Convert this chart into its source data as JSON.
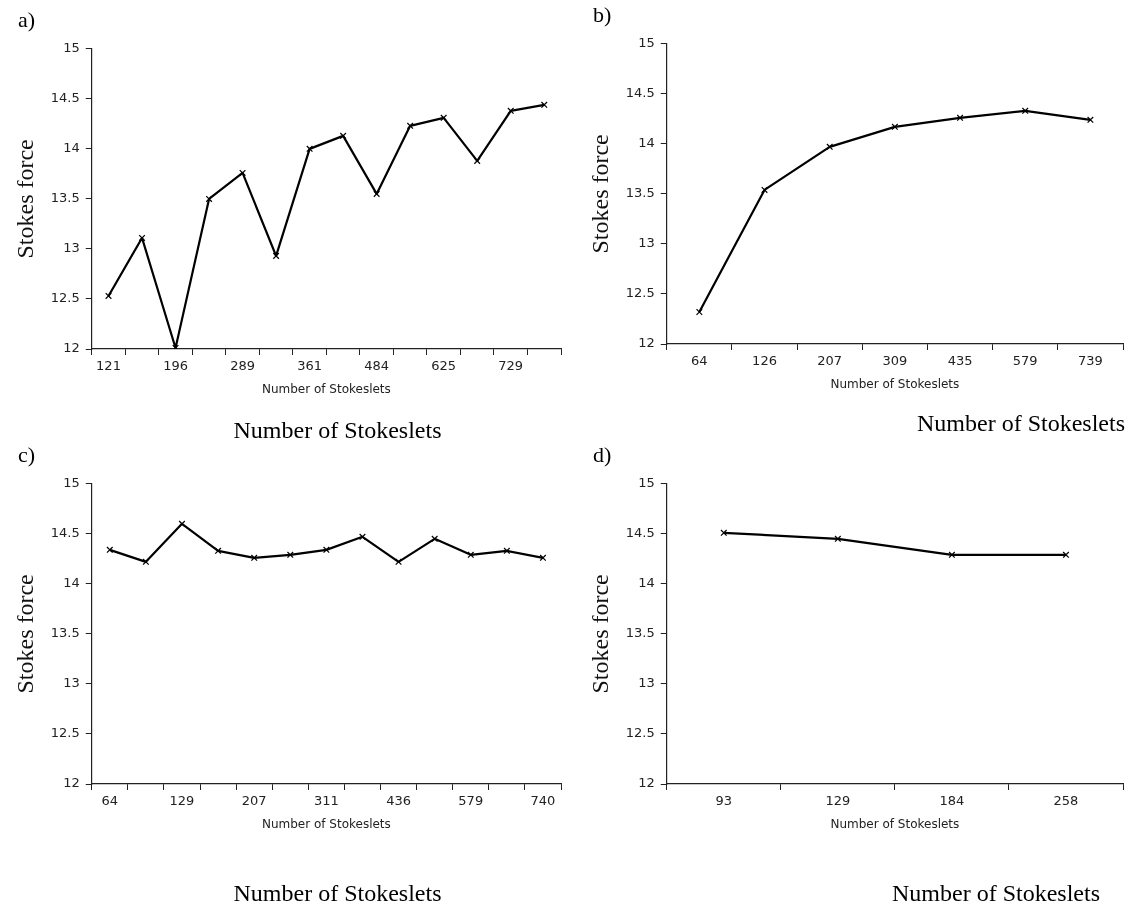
{
  "chart_data": [
    {
      "type": "line",
      "title": "a)",
      "xlabel": "Number of Stokeslets",
      "ylabel": "Stokes force",
      "annotations": [
        "Number of Stokeslets"
      ],
      "categories": [
        "121",
        null,
        "196",
        null,
        "289",
        null,
        "361",
        null,
        "484",
        null,
        "625",
        null,
        "729",
        null
      ],
      "values": [
        12.53,
        13.11,
        12.01,
        13.5,
        13.76,
        12.93,
        14.0,
        14.13,
        13.55,
        14.23,
        14.31,
        13.88,
        14.38,
        14.44
      ],
      "color": "#000000",
      "ylim": [
        12,
        15
      ],
      "yticks": [
        12,
        12.5,
        13,
        13.5,
        14,
        14.5,
        15
      ],
      "marker": "cross",
      "line_style": "solid"
    },
    {
      "type": "line",
      "title": "b)",
      "xlabel": "Number of Stokeslets",
      "ylabel": "Stokes force",
      "annotations": [
        "Number of Stokeslets"
      ],
      "categories": [
        "64",
        "126",
        "207",
        "309",
        "435",
        "579",
        "739"
      ],
      "values": [
        12.32,
        13.54,
        13.97,
        14.17,
        14.26,
        14.33,
        14.24
      ],
      "color": "#000000",
      "ylim": [
        12,
        15
      ],
      "yticks": [
        12,
        12.5,
        13,
        13.5,
        14,
        14.5,
        15
      ],
      "marker": "cross",
      "line_style": "solid"
    },
    {
      "type": "line",
      "title": "c)",
      "xlabel": "Number of Stokeslets",
      "ylabel": "Stokes force",
      "annotations": [
        "Number of Stokeslets"
      ],
      "categories": [
        "64",
        null,
        "129",
        null,
        "207",
        null,
        "311",
        null,
        "436",
        null,
        "579",
        null,
        "740"
      ],
      "values": [
        14.34,
        14.22,
        14.6,
        14.33,
        14.26,
        14.29,
        14.34,
        14.47,
        14.22,
        14.45,
        14.29,
        14.33,
        14.26
      ],
      "color": "#000000",
      "ylim": [
        12,
        15
      ],
      "yticks": [
        12,
        12.5,
        13,
        13.5,
        14,
        14.5,
        15
      ],
      "marker": "cross",
      "line_style": "solid"
    },
    {
      "type": "line",
      "title": "d)",
      "xlabel": "Number of Stokeslets",
      "ylabel": "Stokes force",
      "annotations": [
        "Number of Stokeslets"
      ],
      "categories": [
        "93",
        "129",
        "184",
        "258"
      ],
      "values": [
        14.51,
        14.45,
        14.29,
        14.29
      ],
      "color": "#000000",
      "ylim": [
        12,
        15
      ],
      "yticks": [
        12,
        12.5,
        13,
        13.5,
        14,
        14.5,
        15
      ],
      "marker": "cross",
      "line_style": "solid"
    }
  ]
}
